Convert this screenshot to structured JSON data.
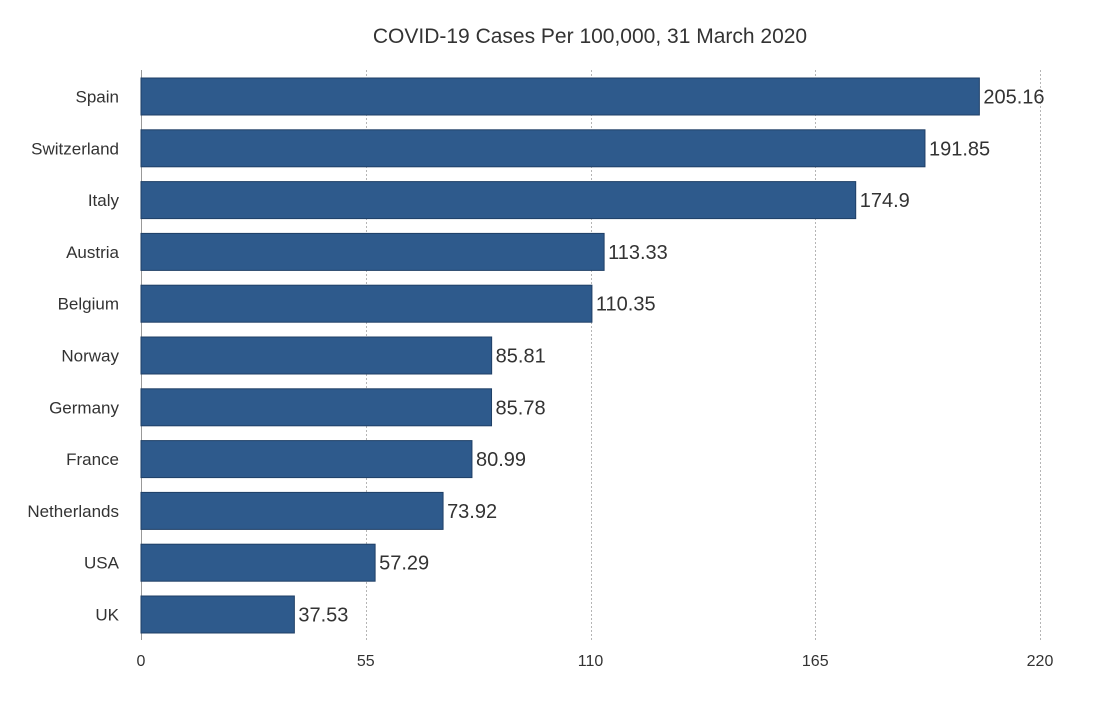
{
  "chart_data": {
    "type": "bar",
    "orientation": "horizontal",
    "title": "COVID-19 Cases Per 100,000, 31 March 2020",
    "xlabel": "",
    "ylabel": "",
    "categories": [
      "Spain",
      "Switzerland",
      "Italy",
      "Austria",
      "Belgium",
      "Norway",
      "Germany",
      "France",
      "Netherlands",
      "USA",
      "UK"
    ],
    "values": [
      205.16,
      191.85,
      174.9,
      113.33,
      110.35,
      85.81,
      85.78,
      80.99,
      73.92,
      57.29,
      37.53
    ],
    "value_labels": [
      "205.16",
      "191.85",
      "174.9",
      "113.33",
      "110.35",
      "85.81",
      "85.78",
      "80.99",
      "73.92",
      "57.29",
      "37.53"
    ],
    "xlim": [
      0,
      220
    ],
    "xticks": [
      0,
      55,
      110,
      165,
      220
    ],
    "xtick_labels": [
      "0",
      "55",
      "110",
      "165",
      "220"
    ],
    "grid": true,
    "legend": "none",
    "bar_color": "#2e5a8c"
  }
}
